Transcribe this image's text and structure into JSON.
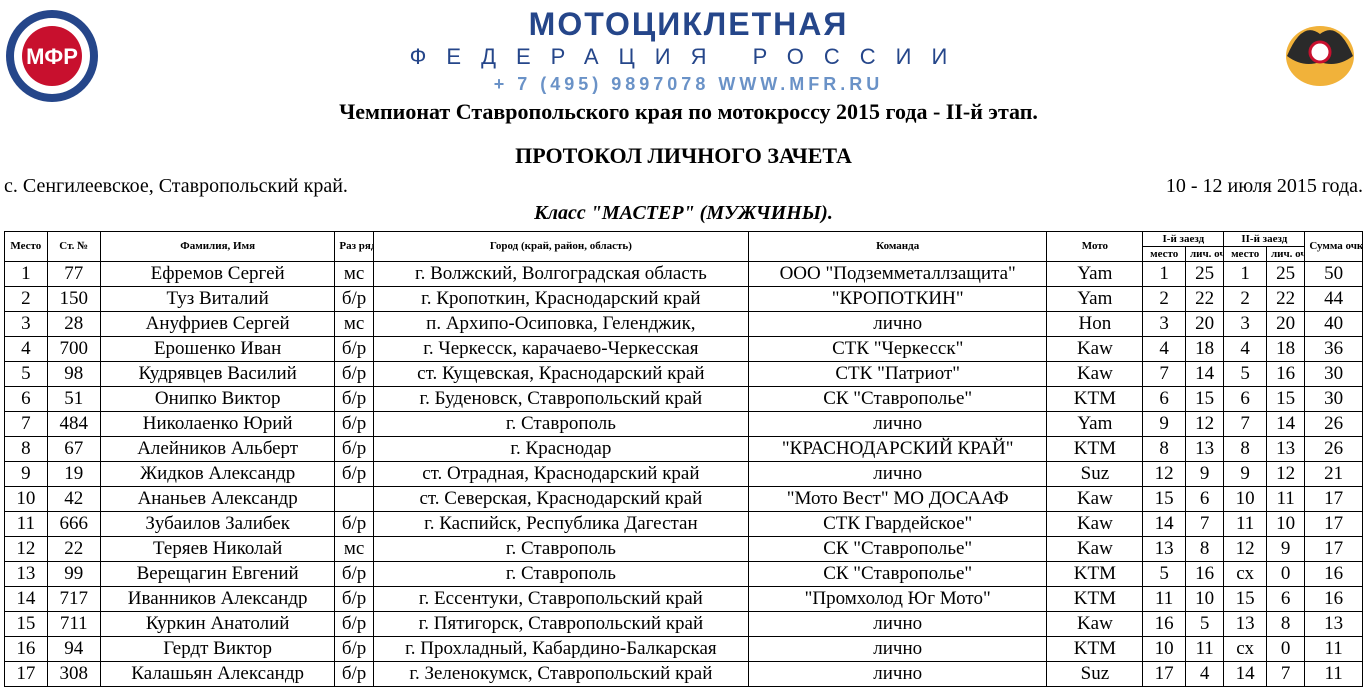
{
  "header": {
    "org_name": "МОТОЦИКЛЕТНАЯ",
    "org_sub": "ФЕДЕРАЦИЯ РОССИИ",
    "contact": "+ 7 (495) 9897078    WWW.MFR.RU",
    "event_title": "Чемпионат Ставропольского края по мотокроссу 2015 года - II-й этап.",
    "protocol_title": "ПРОТОКОЛ  ЛИЧНОГО  ЗАЧЕТА",
    "location": "с. Сенгилеевское, Ставропольский край.",
    "dates": "10 - 12 июля 2015 года.",
    "class_title": "Класс \"МАСТЕР\" (МУЖЧИНЫ)."
  },
  "columns": {
    "place": "Место",
    "start_no": "Ст. №",
    "name": "Фамилия, Имя",
    "rank": "Раз ряд",
    "city": "Город (край, район, область)",
    "team": "Команда",
    "moto": "Мото",
    "heat1": "I-й заезд",
    "heat2": "II-й заезд",
    "heat_place": "место",
    "heat_pts": "лич. очки",
    "total": "Сумма очков в личном"
  },
  "rows": [
    {
      "place": "1",
      "start": "77",
      "name": "Ефремов Сергей",
      "rank": "мс",
      "city": "г. Волжский, Волгоградская область",
      "team": "ООО \"Подземметаллзащита\"",
      "moto": "Yam",
      "h1p": "1",
      "h1pt": "25",
      "h2p": "1",
      "h2pt": "25",
      "sum": "50"
    },
    {
      "place": "2",
      "start": "150",
      "name": "Туз Виталий",
      "rank": "б/р",
      "city": "г. Кропоткин, Краснодарский край",
      "team": "\"КРОПОТКИН\"",
      "moto": "Yam",
      "h1p": "2",
      "h1pt": "22",
      "h2p": "2",
      "h2pt": "22",
      "sum": "44"
    },
    {
      "place": "3",
      "start": "28",
      "name": "Ануфриев Сергей",
      "rank": "мс",
      "city": "п. Архипо-Осиповка, Геленджик,",
      "team": "лично",
      "moto": "Hon",
      "h1p": "3",
      "h1pt": "20",
      "h2p": "3",
      "h2pt": "20",
      "sum": "40"
    },
    {
      "place": "4",
      "start": "700",
      "name": "Ерошенко Иван",
      "rank": "б/р",
      "city": "г. Черкесск, карачаево-Черкесская",
      "team": "СТК \"Черкесск\"",
      "moto": "Kaw",
      "h1p": "4",
      "h1pt": "18",
      "h2p": "4",
      "h2pt": "18",
      "sum": "36"
    },
    {
      "place": "5",
      "start": "98",
      "name": "Кудрявцев Василий",
      "rank": "б/р",
      "city": "ст. Кущевская, Краснодарский край",
      "team": "СТК \"Патриот\"",
      "moto": "Kaw",
      "h1p": "7",
      "h1pt": "14",
      "h2p": "5",
      "h2pt": "16",
      "sum": "30"
    },
    {
      "place": "6",
      "start": "51",
      "name": "Онипко Виктор",
      "rank": "б/р",
      "city": "г. Буденовск, Ставропольский край",
      "team": "СК \"Ставрополье\"",
      "moto": "KTM",
      "h1p": "6",
      "h1pt": "15",
      "h2p": "6",
      "h2pt": "15",
      "sum": "30"
    },
    {
      "place": "7",
      "start": "484",
      "name": "Николаенко Юрий",
      "rank": "б/р",
      "city": "г. Ставрополь",
      "team": "лично",
      "moto": "Yam",
      "h1p": "9",
      "h1pt": "12",
      "h2p": "7",
      "h2pt": "14",
      "sum": "26"
    },
    {
      "place": "8",
      "start": "67",
      "name": "Алейников Альберт",
      "rank": "б/р",
      "city": "г. Краснодар",
      "team": "\"КРАСНОДАРСКИЙ КРАЙ\"",
      "moto": "KTM",
      "h1p": "8",
      "h1pt": "13",
      "h2p": "8",
      "h2pt": "13",
      "sum": "26"
    },
    {
      "place": "9",
      "start": "19",
      "name": "Жидков Александр",
      "rank": "б/р",
      "city": "ст. Отрадная, Краснодарский край",
      "team": "лично",
      "moto": "Suz",
      "h1p": "12",
      "h1pt": "9",
      "h2p": "9",
      "h2pt": "12",
      "sum": "21"
    },
    {
      "place": "10",
      "start": "42",
      "name": "Ананьев Александр",
      "rank": "",
      "city": "ст. Северская, Краснодарский край",
      "team": "\"Мото Вест\" МО ДОСААФ",
      "moto": "Kaw",
      "h1p": "15",
      "h1pt": "6",
      "h2p": "10",
      "h2pt": "11",
      "sum": "17"
    },
    {
      "place": "11",
      "start": "666",
      "name": "Зубаилов Залибек",
      "rank": "б/р",
      "city": "г. Каспийск, Республика Дагестан",
      "team": "СТК Гвардейское\"",
      "moto": "Kaw",
      "h1p": "14",
      "h1pt": "7",
      "h2p": "11",
      "h2pt": "10",
      "sum": "17"
    },
    {
      "place": "12",
      "start": "22",
      "name": "Теряев Николай",
      "rank": "мс",
      "city": "г. Ставрополь",
      "team": "СК \"Ставрополье\"",
      "moto": "Kaw",
      "h1p": "13",
      "h1pt": "8",
      "h2p": "12",
      "h2pt": "9",
      "sum": "17"
    },
    {
      "place": "13",
      "start": "99",
      "name": "Верещагин Евгений",
      "rank": "б/р",
      "city": "г. Ставрополь",
      "team": "СК \"Ставрополье\"",
      "moto": "KTM",
      "h1p": "5",
      "h1pt": "16",
      "h2p": "сх",
      "h2pt": "0",
      "sum": "16"
    },
    {
      "place": "14",
      "start": "717",
      "name": "Иванников Александр",
      "rank": "б/р",
      "city": "г. Ессентуки, Ставропольский край",
      "team": "\"Промхолод Юг Мото\"",
      "moto": "KTM",
      "h1p": "11",
      "h1pt": "10",
      "h2p": "15",
      "h2pt": "6",
      "sum": "16"
    },
    {
      "place": "15",
      "start": "711",
      "name": "Куркин Анатолий",
      "rank": "б/р",
      "city": "г. Пятигорск, Ставропольский край",
      "team": "лично",
      "moto": "Kaw",
      "h1p": "16",
      "h1pt": "5",
      "h2p": "13",
      "h2pt": "8",
      "sum": "13"
    },
    {
      "place": "16",
      "start": "94",
      "name": "Гердт Виктор",
      "rank": "б/р",
      "city": "г. Прохладный, Кабардино-Балкарская",
      "team": "лично",
      "moto": "KTM",
      "h1p": "10",
      "h1pt": "11",
      "h2p": "сх",
      "h2pt": "0",
      "sum": "11"
    },
    {
      "place": "17",
      "start": "308",
      "name": "Калашьян Александр",
      "rank": "б/р",
      "city": "г. Зеленокумск, Ставропольский край",
      "team": "лично",
      "moto": "Suz",
      "h1p": "17",
      "h1pt": "4",
      "h2p": "14",
      "h2pt": "7",
      "sum": "11"
    }
  ],
  "style": {
    "brand_color": "#25468a",
    "brand_light": "#6a92c7",
    "logo_red": "#c8102e",
    "logo_blue": "#25468a",
    "logo_white": "#ffffff",
    "logo_gold": "#f1b23a",
    "border_color": "#000000",
    "fonts": {
      "header": "Arial",
      "body": "Times New Roman"
    }
  }
}
